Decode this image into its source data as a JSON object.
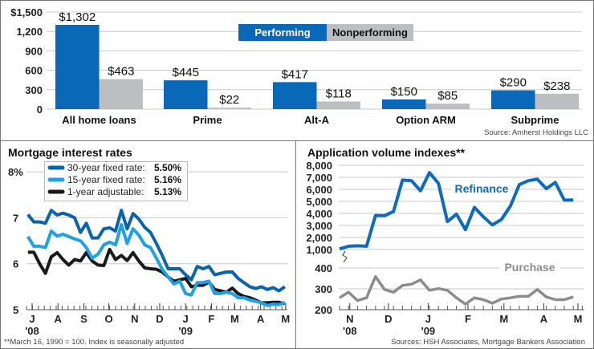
{
  "colors": {
    "performing": "#0a68b8",
    "nonperforming": "#bdbec1",
    "rate30": "#0a64ad",
    "rate15": "#1fa2e3",
    "rate1": "#1a1a1a",
    "refinance": "#0a6bc0",
    "purchase": "#8c8c8c",
    "border": "#777777"
  },
  "chart_data": [
    {
      "type": "bar",
      "categories": [
        "All home loans",
        "Prime",
        "Alt-A",
        "Option ARM",
        "Subprime"
      ],
      "series": [
        {
          "name": "Performing",
          "values": [
            1302,
            445,
            417,
            150,
            290
          ],
          "labels": [
            "$1,302",
            "$445",
            "$417",
            "$150",
            "$290"
          ]
        },
        {
          "name": "Nonperforming",
          "values": [
            463,
            22,
            118,
            85,
            238
          ],
          "labels": [
            "$463",
            "$22",
            "$118",
            "$85",
            "$238"
          ]
        }
      ],
      "yticks": [
        0,
        300,
        600,
        900,
        1200,
        1500
      ],
      "ytick_labels": [
        "0",
        "300",
        "600",
        "900",
        "1,200",
        "$1,500"
      ],
      "ylim": [
        0,
        1500
      ],
      "grid": true,
      "legend": "top-center",
      "source": "Source: Amherst Holdings LLC"
    },
    {
      "type": "line",
      "title": "Mortgage interest rates",
      "x_start": "2008-06-26",
      "x_step_days": 7,
      "series": [
        {
          "name": "30-year fixed rate:",
          "current": "5.50%",
          "values": [
            7.07,
            6.91,
            6.91,
            6.88,
            7.16,
            7.06,
            7.1,
            7.06,
            7.0,
            6.68,
            6.88,
            6.56,
            6.56,
            6.76,
            6.78,
            6.71,
            7.16,
            6.76,
            7.09,
            6.97,
            6.79,
            6.68,
            6.44,
            6.18,
            5.89,
            5.89,
            5.89,
            5.76,
            5.65,
            5.94,
            5.89,
            5.94,
            5.76,
            5.79,
            5.82,
            5.82,
            5.68,
            5.59,
            5.5,
            5.46,
            5.5,
            5.44,
            5.48,
            5.41,
            5.5
          ]
        },
        {
          "name": "15-year fixed rate:",
          "current": "5.16%",
          "values": [
            6.59,
            6.38,
            6.38,
            6.35,
            6.71,
            6.6,
            6.64,
            6.59,
            6.54,
            6.5,
            6.35,
            6.12,
            6.21,
            6.41,
            6.47,
            6.41,
            6.85,
            6.44,
            6.76,
            6.62,
            6.41,
            6.35,
            6.12,
            5.88,
            5.71,
            5.56,
            5.62,
            5.35,
            5.32,
            5.59,
            5.59,
            5.62,
            5.35,
            5.35,
            5.38,
            5.35,
            5.26,
            5.26,
            5.21,
            5.18,
            5.15,
            5.09,
            5.12,
            5.11,
            5.16
          ]
        },
        {
          "name": "1-year adjustable:",
          "current": "5.13%",
          "values": [
            6.25,
            6.25,
            6.0,
            5.79,
            6.15,
            6.24,
            6.09,
            5.97,
            6.09,
            6.06,
            6.24,
            6.06,
            5.97,
            5.96,
            6.31,
            6.09,
            6.18,
            6.07,
            6.24,
            6.06,
            5.91,
            5.89,
            5.88,
            5.82,
            5.71,
            5.62,
            5.65,
            5.68,
            5.5,
            5.53,
            5.53,
            5.6,
            5.44,
            5.41,
            5.38,
            5.47,
            5.35,
            5.29,
            5.26,
            5.21,
            5.15,
            5.15,
            5.16,
            5.16,
            5.13
          ]
        }
      ],
      "ylim": [
        5,
        8
      ],
      "yticks": [
        5,
        6,
        7,
        8
      ],
      "ytick_labels": [
        "5",
        "6",
        "7",
        "8%"
      ],
      "xtick_labels": [
        "J",
        "A",
        "S",
        "O",
        "N",
        "D",
        "J",
        "F",
        "M",
        "A",
        "M"
      ],
      "xtick_dates": [
        "2008-07-01",
        "2008-08-01",
        "2008-09-01",
        "2008-10-01",
        "2008-11-01",
        "2008-12-01",
        "2009-01-01",
        "2009-02-01",
        "2009-03-01",
        "2009-04-01",
        "2009-05-01"
      ],
      "year_labels": [
        "'08",
        "'09"
      ],
      "footnote": "**March 16, 1990 = 100. Index is seasonally adjusted",
      "grid": true,
      "legend": "top-left"
    },
    {
      "type": "line",
      "title": "Application volume indexes**",
      "x_start": "2008-10-24",
      "x_step_days": 7,
      "series": [
        {
          "name": "Refinance",
          "values": [
            1045,
            1270,
            1310,
            1270,
            3830,
            3810,
            4160,
            6770,
            6720,
            5880,
            7390,
            6500,
            3320,
            3940,
            2650,
            4500,
            3720,
            3050,
            3490,
            4610,
            6390,
            6720,
            6840,
            6060,
            6570,
            5100,
            5120
          ]
        },
        {
          "name": "Purchase",
          "values": [
            257,
            284,
            244,
            257,
            359,
            297,
            284,
            316,
            322,
            343,
            293,
            301,
            293,
            257,
            227,
            257,
            248,
            231,
            251,
            257,
            264,
            264,
            297,
            261,
            248,
            248,
            261
          ]
        }
      ],
      "upper_ylim": [
        1000,
        8000
      ],
      "lower_ylim": [
        200,
        400
      ],
      "upper_yticks": [
        1000,
        2000,
        3000,
        4000,
        5000,
        6000,
        7000,
        8000
      ],
      "upper_ytick_labels": [
        "1,000",
        "2,000",
        "3,000",
        "4,000",
        "5,000",
        "6,000",
        "7,000",
        "8,000"
      ],
      "lower_yticks": [
        200,
        300,
        400
      ],
      "lower_ytick_labels": [
        "200",
        "300",
        "400"
      ],
      "xtick_labels": [
        "N",
        "D",
        "J",
        "F",
        "M",
        "A",
        "M"
      ],
      "xtick_dates": [
        "2008-11-01",
        "2008-12-01",
        "2009-01-01",
        "2009-02-01",
        "2009-03-01",
        "2009-04-01",
        "2009-05-01"
      ],
      "year_labels": [
        "'08",
        "'09"
      ],
      "source": "Sources: HSH Associates, Mortgage Bankers Association",
      "grid": true
    }
  ]
}
